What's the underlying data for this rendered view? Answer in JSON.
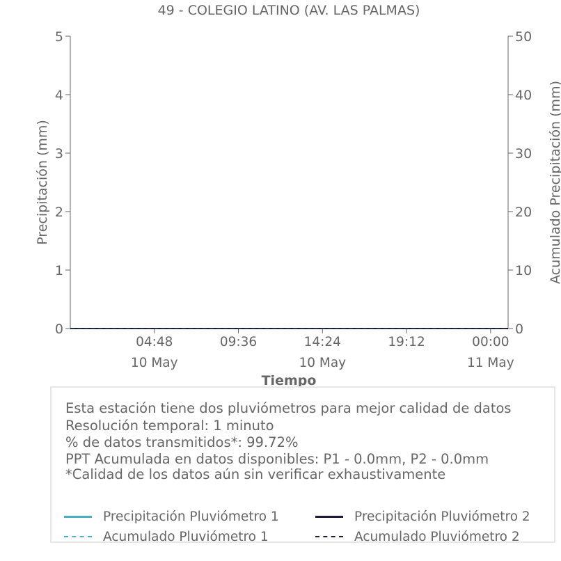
{
  "chart_data": {
    "type": "line",
    "title": "49 - COLEGIO LATINO (AV. LAS PALMAS)",
    "xlabel": "Tiempo",
    "ylabel_left": "Precipitación (mm)",
    "ylabel_right": "Acumulado Precipitación (mm)",
    "ylim_left": [
      0,
      5
    ],
    "ylim_right": [
      0,
      50
    ],
    "yticks_left": [
      "0",
      "1",
      "2",
      "3",
      "4",
      "5"
    ],
    "yticks_right": [
      "0",
      "10",
      "20",
      "30",
      "40",
      "50"
    ],
    "xlim_hours": [
      0,
      25
    ],
    "x_ticks": [
      {
        "hour": 4.8,
        "time": "04:48",
        "date": "10 May"
      },
      {
        "hour": 9.6,
        "time": "09:36",
        "date": ""
      },
      {
        "hour": 14.4,
        "time": "14:24",
        "date": "10 May"
      },
      {
        "hour": 19.2,
        "time": "19:12",
        "date": ""
      },
      {
        "hour": 24.0,
        "time": "00:00",
        "date": "11 May"
      }
    ],
    "series": [
      {
        "name": "Precipitación Pluviómetro 1",
        "axis": "left",
        "color": "#4bb0c4",
        "dash": "solid",
        "x": [
          0,
          25
        ],
        "values": [
          0,
          0
        ]
      },
      {
        "name": "Precipitación Pluviómetro 2",
        "axis": "left",
        "color": "#1c1c3a",
        "dash": "solid",
        "x": [
          0,
          25
        ],
        "values": [
          0,
          0
        ]
      },
      {
        "name": "Acumulado Pluviómetro 1",
        "axis": "right",
        "color": "#4bb0c4",
        "dash": "dashed",
        "x": [
          0,
          25
        ],
        "values": [
          0,
          0
        ]
      },
      {
        "name": "Acumulado Pluviómetro 2",
        "axis": "right",
        "color": "#1c1c3a",
        "dash": "dashed",
        "x": [
          0,
          25
        ],
        "values": [
          0,
          0
        ]
      }
    ],
    "grid": false,
    "legend_placement": "bottom"
  },
  "info": {
    "lines": [
      "Esta estación tiene dos pluviómetros para mejor calidad de datos",
      "Resolución temporal: 1 minuto",
      "% de datos transmitidos*: 99.72%",
      "PPT Acumulada en datos disponibles: P1 - 0.0mm, P2 - 0.0mm",
      "*Calidad de los datos aún sin verificar exhaustivamente"
    ]
  }
}
